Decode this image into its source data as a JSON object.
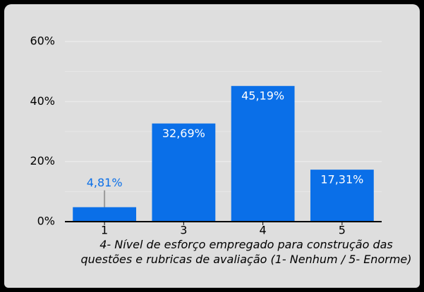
{
  "chart_data": {
    "type": "bar",
    "xlabel": "4- Nível de esforço empregado para construção das questões e rubricas de avaliação (1- Nenhum / 5- Enorme)",
    "categories": [
      "1",
      "3",
      "4",
      "5"
    ],
    "values": [
      4.81,
      32.69,
      45.19,
      17.31
    ],
    "value_labels": [
      "4,81%",
      "32,69%",
      "45,19%",
      "17,31%"
    ],
    "color": "#0a6fe8",
    "ylim": [
      0,
      60
    ],
    "yticks": [
      {
        "value": 0,
        "label": "0%"
      },
      {
        "value": 20,
        "label": "20%"
      },
      {
        "value": 40,
        "label": "40%"
      },
      {
        "value": 60,
        "label": "60%"
      }
    ],
    "minor_yticks": [
      10,
      30,
      50
    ],
    "grid": true
  }
}
